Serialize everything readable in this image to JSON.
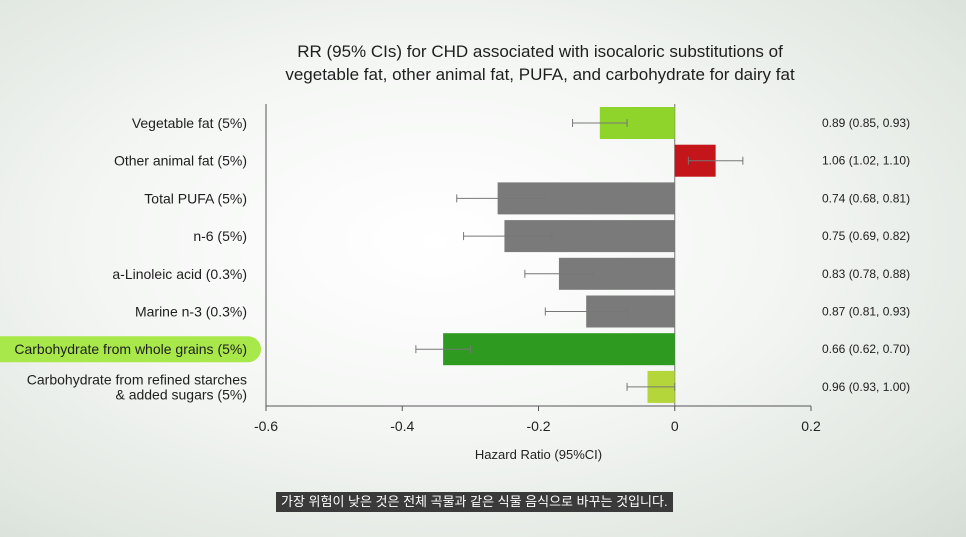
{
  "chart_data": {
    "type": "bar",
    "orientation": "horizontal",
    "title_lines": [
      "RR (95% CIs) for CHD associated with isocaloric substitutions of",
      "vegetable fat, other animal fat, PUFA, and carbohydrate for dairy fat"
    ],
    "xlabel": "Hazard Ratio (95%CI)",
    "xlim": [
      -0.6,
      0.2
    ],
    "xticks": [
      -0.6,
      -0.4,
      -0.2,
      0,
      0.2
    ],
    "xtick_labels": [
      "-0.6",
      "-0.4",
      "-0.2",
      "0",
      "0.2"
    ],
    "categories": [
      {
        "label": "Vegetable fat (5%)",
        "value": -0.11,
        "err_low": -0.15,
        "err_high": -0.07,
        "annotation": "0.89 (0.85, 0.93)",
        "color": "#8fd42a",
        "highlight": false
      },
      {
        "label": "Other animal fat (5%)",
        "value": 0.06,
        "err_low": 0.02,
        "err_high": 0.1,
        "annotation": "1.06 (1.02, 1.10)",
        "color": "#c4151a",
        "highlight": false
      },
      {
        "label": "Total PUFA (5%)",
        "value": -0.26,
        "err_low": -0.32,
        "err_high": -0.19,
        "annotation": "0.74 (0.68, 0.81)",
        "color": "#7a7a7a",
        "highlight": false
      },
      {
        "label": "n-6 (5%)",
        "value": -0.25,
        "err_low": -0.31,
        "err_high": -0.18,
        "annotation": "0.75 (0.69, 0.82)",
        "color": "#7a7a7a",
        "highlight": false
      },
      {
        "label": "a-Linoleic acid (0.3%)",
        "value": -0.17,
        "err_low": -0.22,
        "err_high": -0.12,
        "annotation": "0.83 (0.78, 0.88)",
        "color": "#7a7a7a",
        "highlight": false
      },
      {
        "label": "Marine n-3 (0.3%)",
        "value": -0.13,
        "err_low": -0.19,
        "err_high": -0.07,
        "annotation": "0.87 (0.81, 0.93)",
        "color": "#7a7a7a",
        "highlight": false
      },
      {
        "label": "Carbohydrate from whole grains (5%)",
        "value": -0.34,
        "err_low": -0.38,
        "err_high": -0.3,
        "annotation": "0.66 (0.62, 0.70)",
        "color": "#2e9a1f",
        "highlight": true
      },
      {
        "label": "Carbohydrate from refined starches\n& added sugars (5%)",
        "value": -0.04,
        "err_low": -0.07,
        "err_high": 0.0,
        "annotation": "0.96 (0.93, 1.00)",
        "color": "#b5d63a",
        "highlight": false
      }
    ],
    "highlight_color": "#a8e84a",
    "grid": false
  },
  "subtitle": "가장 위험이 낮은 것은 전체 곡물과 같은 식물 음식으로 바꾸는 것입니다."
}
